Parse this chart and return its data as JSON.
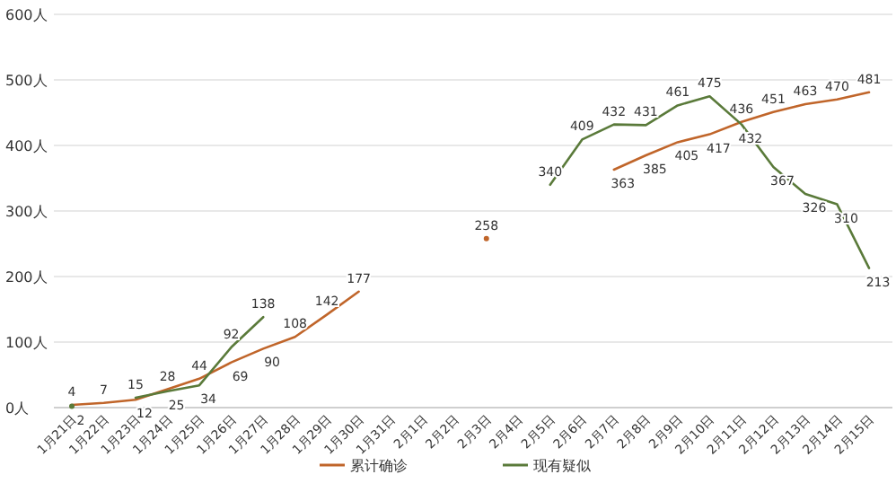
{
  "chart_data": {
    "type": "line",
    "categories": [
      "1月21日",
      "1月22日",
      "1月23日",
      "1月24日",
      "1月25日",
      "1月26日",
      "1月27日",
      "1月28日",
      "1月29日",
      "1月30日",
      "1月31日",
      "2月1日",
      "2月2日",
      "2月3日",
      "2月4日",
      "2月5日",
      "2月6日",
      "2月7日",
      "2月8日",
      "2月9日",
      "2月10日",
      "2月11日",
      "2月12日",
      "2月13日",
      "2月14日",
      "2月15日"
    ],
    "series": [
      {
        "name": "累计确诊",
        "color": "#c0652a",
        "values": [
          4,
          7,
          12,
          28,
          44,
          69,
          90,
          108,
          142,
          177,
          null,
          null,
          null,
          258,
          null,
          null,
          null,
          363,
          385,
          405,
          417,
          436,
          451,
          463,
          470,
          481
        ]
      },
      {
        "name": "现有疑似",
        "color": "#5a7a3a",
        "values": [
          2,
          null,
          15,
          25,
          34,
          92,
          138,
          null,
          null,
          null,
          null,
          null,
          null,
          null,
          null,
          340,
          409,
          432,
          431,
          461,
          475,
          432,
          367,
          326,
          310,
          213
        ]
      }
    ],
    "ylim": [
      0,
      600
    ],
    "yticks": [
      {
        "value": 0,
        "label": "0人"
      },
      {
        "value": 100,
        "label": "100人"
      },
      {
        "value": 200,
        "label": "200人"
      },
      {
        "value": 300,
        "label": "300人"
      },
      {
        "value": 400,
        "label": "400人"
      },
      {
        "value": 500,
        "label": "500人"
      },
      {
        "value": 600,
        "label": "600人"
      }
    ],
    "grid": "y",
    "legend": "bottom",
    "data_labels": true,
    "marker": "none",
    "line_style": "solid"
  }
}
